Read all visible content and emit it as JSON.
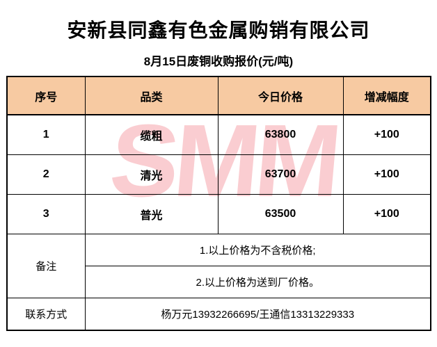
{
  "page": {
    "title": "安新县同鑫有色金属购销有限公司",
    "subtitle": "8月15日废铜收购报价(元/吨)"
  },
  "table": {
    "columns": [
      "序号",
      "品类",
      "今日价格",
      "增减幅度"
    ],
    "rows": [
      {
        "no": "1",
        "category": "缆粗",
        "price": "63800",
        "change": "+100"
      },
      {
        "no": "2",
        "category": "清光",
        "price": "63700",
        "change": "+100"
      },
      {
        "no": "3",
        "category": "普光",
        "price": "63500",
        "change": "+100"
      }
    ],
    "remarks": {
      "label": "备注",
      "items": [
        "1.以上价格为不含税价格;",
        "2.以上价格为送到厂价格。"
      ]
    },
    "contact": {
      "label": "联系方式",
      "value": "杨万元13932266695/王通信13313229333"
    }
  },
  "watermark": {
    "text": "SMM",
    "color": "#FACDD1"
  },
  "colors": {
    "header_fill": "#F7CAA2",
    "watermark_pink": "#FACDD1",
    "border": "#000000",
    "background": "#FFFFFF"
  }
}
